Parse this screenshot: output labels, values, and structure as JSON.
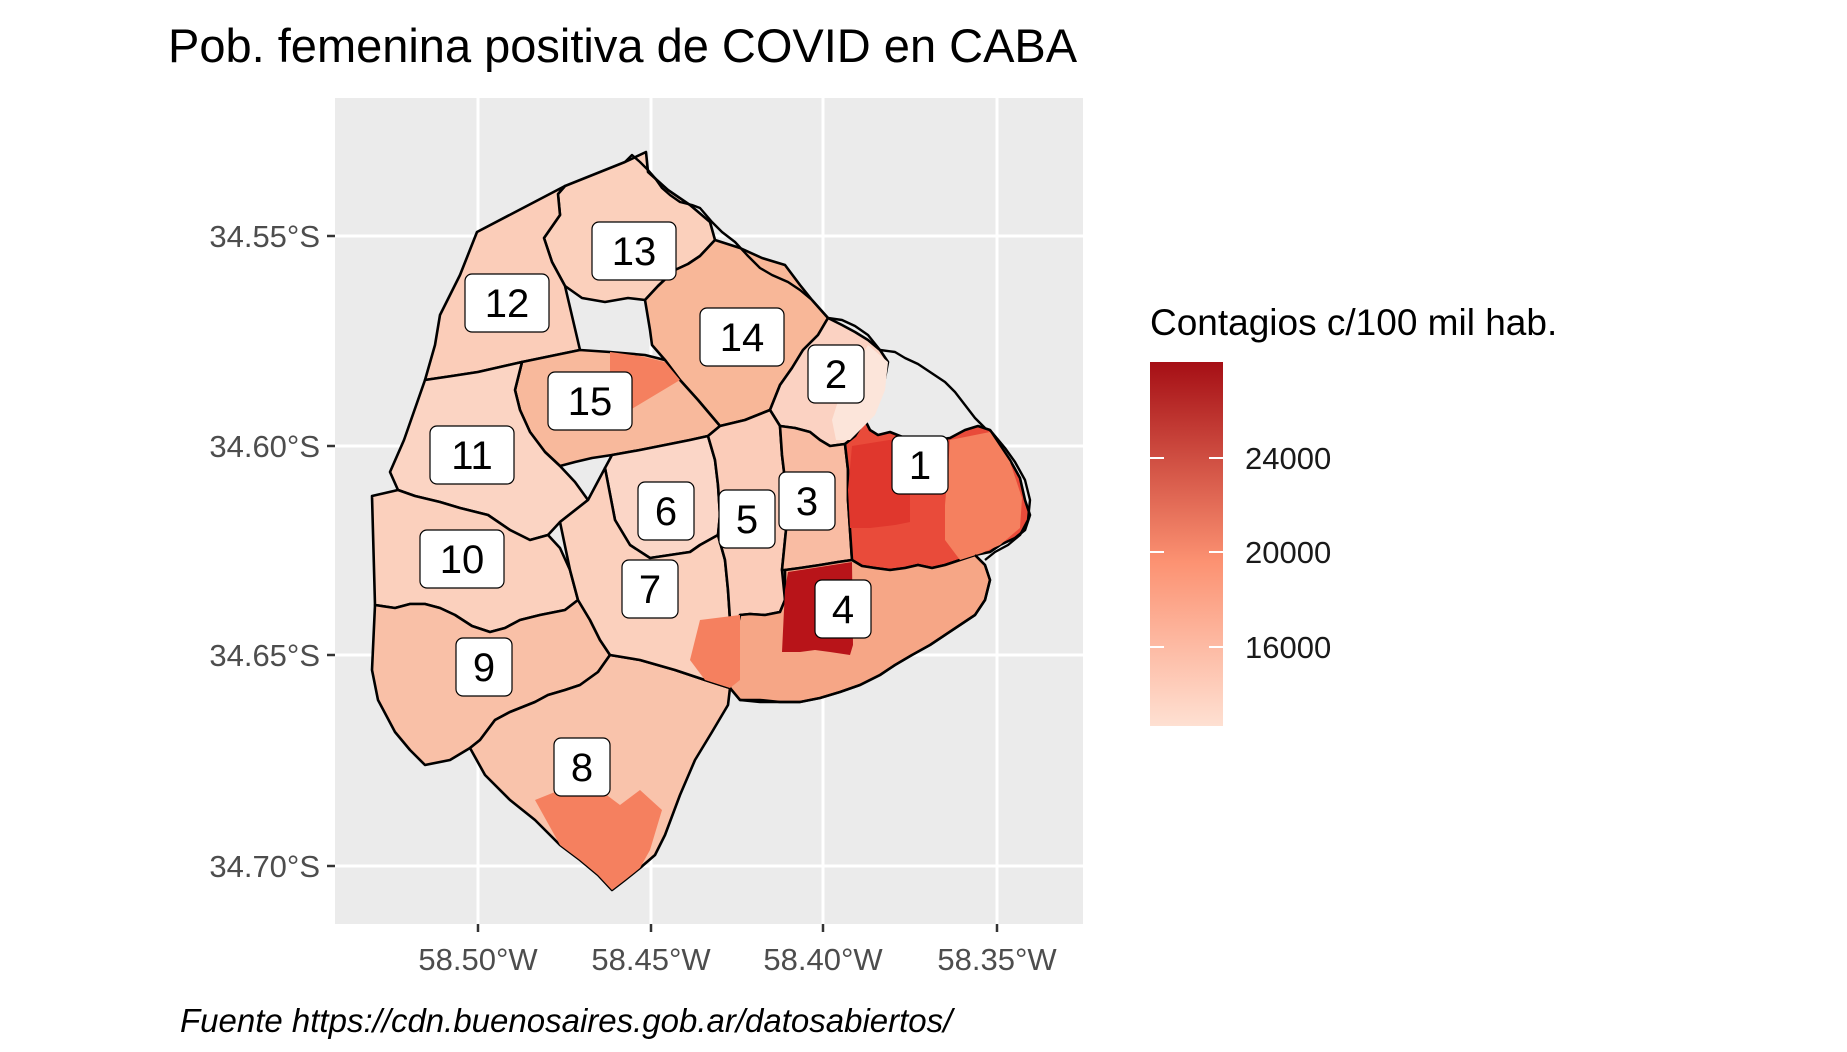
{
  "title": "Pob. femenina positiva de COVID en CABA",
  "caption": "Fuente https://cdn.buenosaires.gob.ar/datosabiertos/",
  "axes": {
    "y_ticks": [
      "34.55°S",
      "34.60°S",
      "34.65°S",
      "34.70°S"
    ],
    "x_ticks": [
      "58.50°W",
      "58.45°W",
      "58.40°W",
      "58.35°W"
    ]
  },
  "legend": {
    "title": "Contagios c/100 mil hab.",
    "tick_labels": [
      "24000",
      "20000",
      "16000"
    ],
    "color_low": "#fee0d2",
    "color_mid": "#fc9272",
    "color_high": "#a50f15"
  },
  "comunas": [
    {
      "id": "1",
      "fill": "#e94b3a"
    },
    {
      "id": "2",
      "fill": "#fbd2c2"
    },
    {
      "id": "3",
      "fill": "#f9bca3"
    },
    {
      "id": "4",
      "fill": "#f6a686"
    },
    {
      "id": "5",
      "fill": "#fbccb9"
    },
    {
      "id": "6",
      "fill": "#fbd6c7"
    },
    {
      "id": "7",
      "fill": "#fbd0bd"
    },
    {
      "id": "8",
      "fill": "#f9c3ab"
    },
    {
      "id": "9",
      "fill": "#f9c0a7"
    },
    {
      "id": "10",
      "fill": "#fbd0bd"
    },
    {
      "id": "11",
      "fill": "#fbd4c3"
    },
    {
      "id": "12",
      "fill": "#fbcdb9"
    },
    {
      "id": "13",
      "fill": "#fbd0bc"
    },
    {
      "id": "14",
      "fill": "#f8b798"
    },
    {
      "id": "15",
      "fill": "#f8b99c"
    }
  ],
  "highlight_colors": {
    "darkest": "#b81419",
    "dark": "#e0372d",
    "medium": "#f5805f",
    "light": "#fce5da"
  }
}
